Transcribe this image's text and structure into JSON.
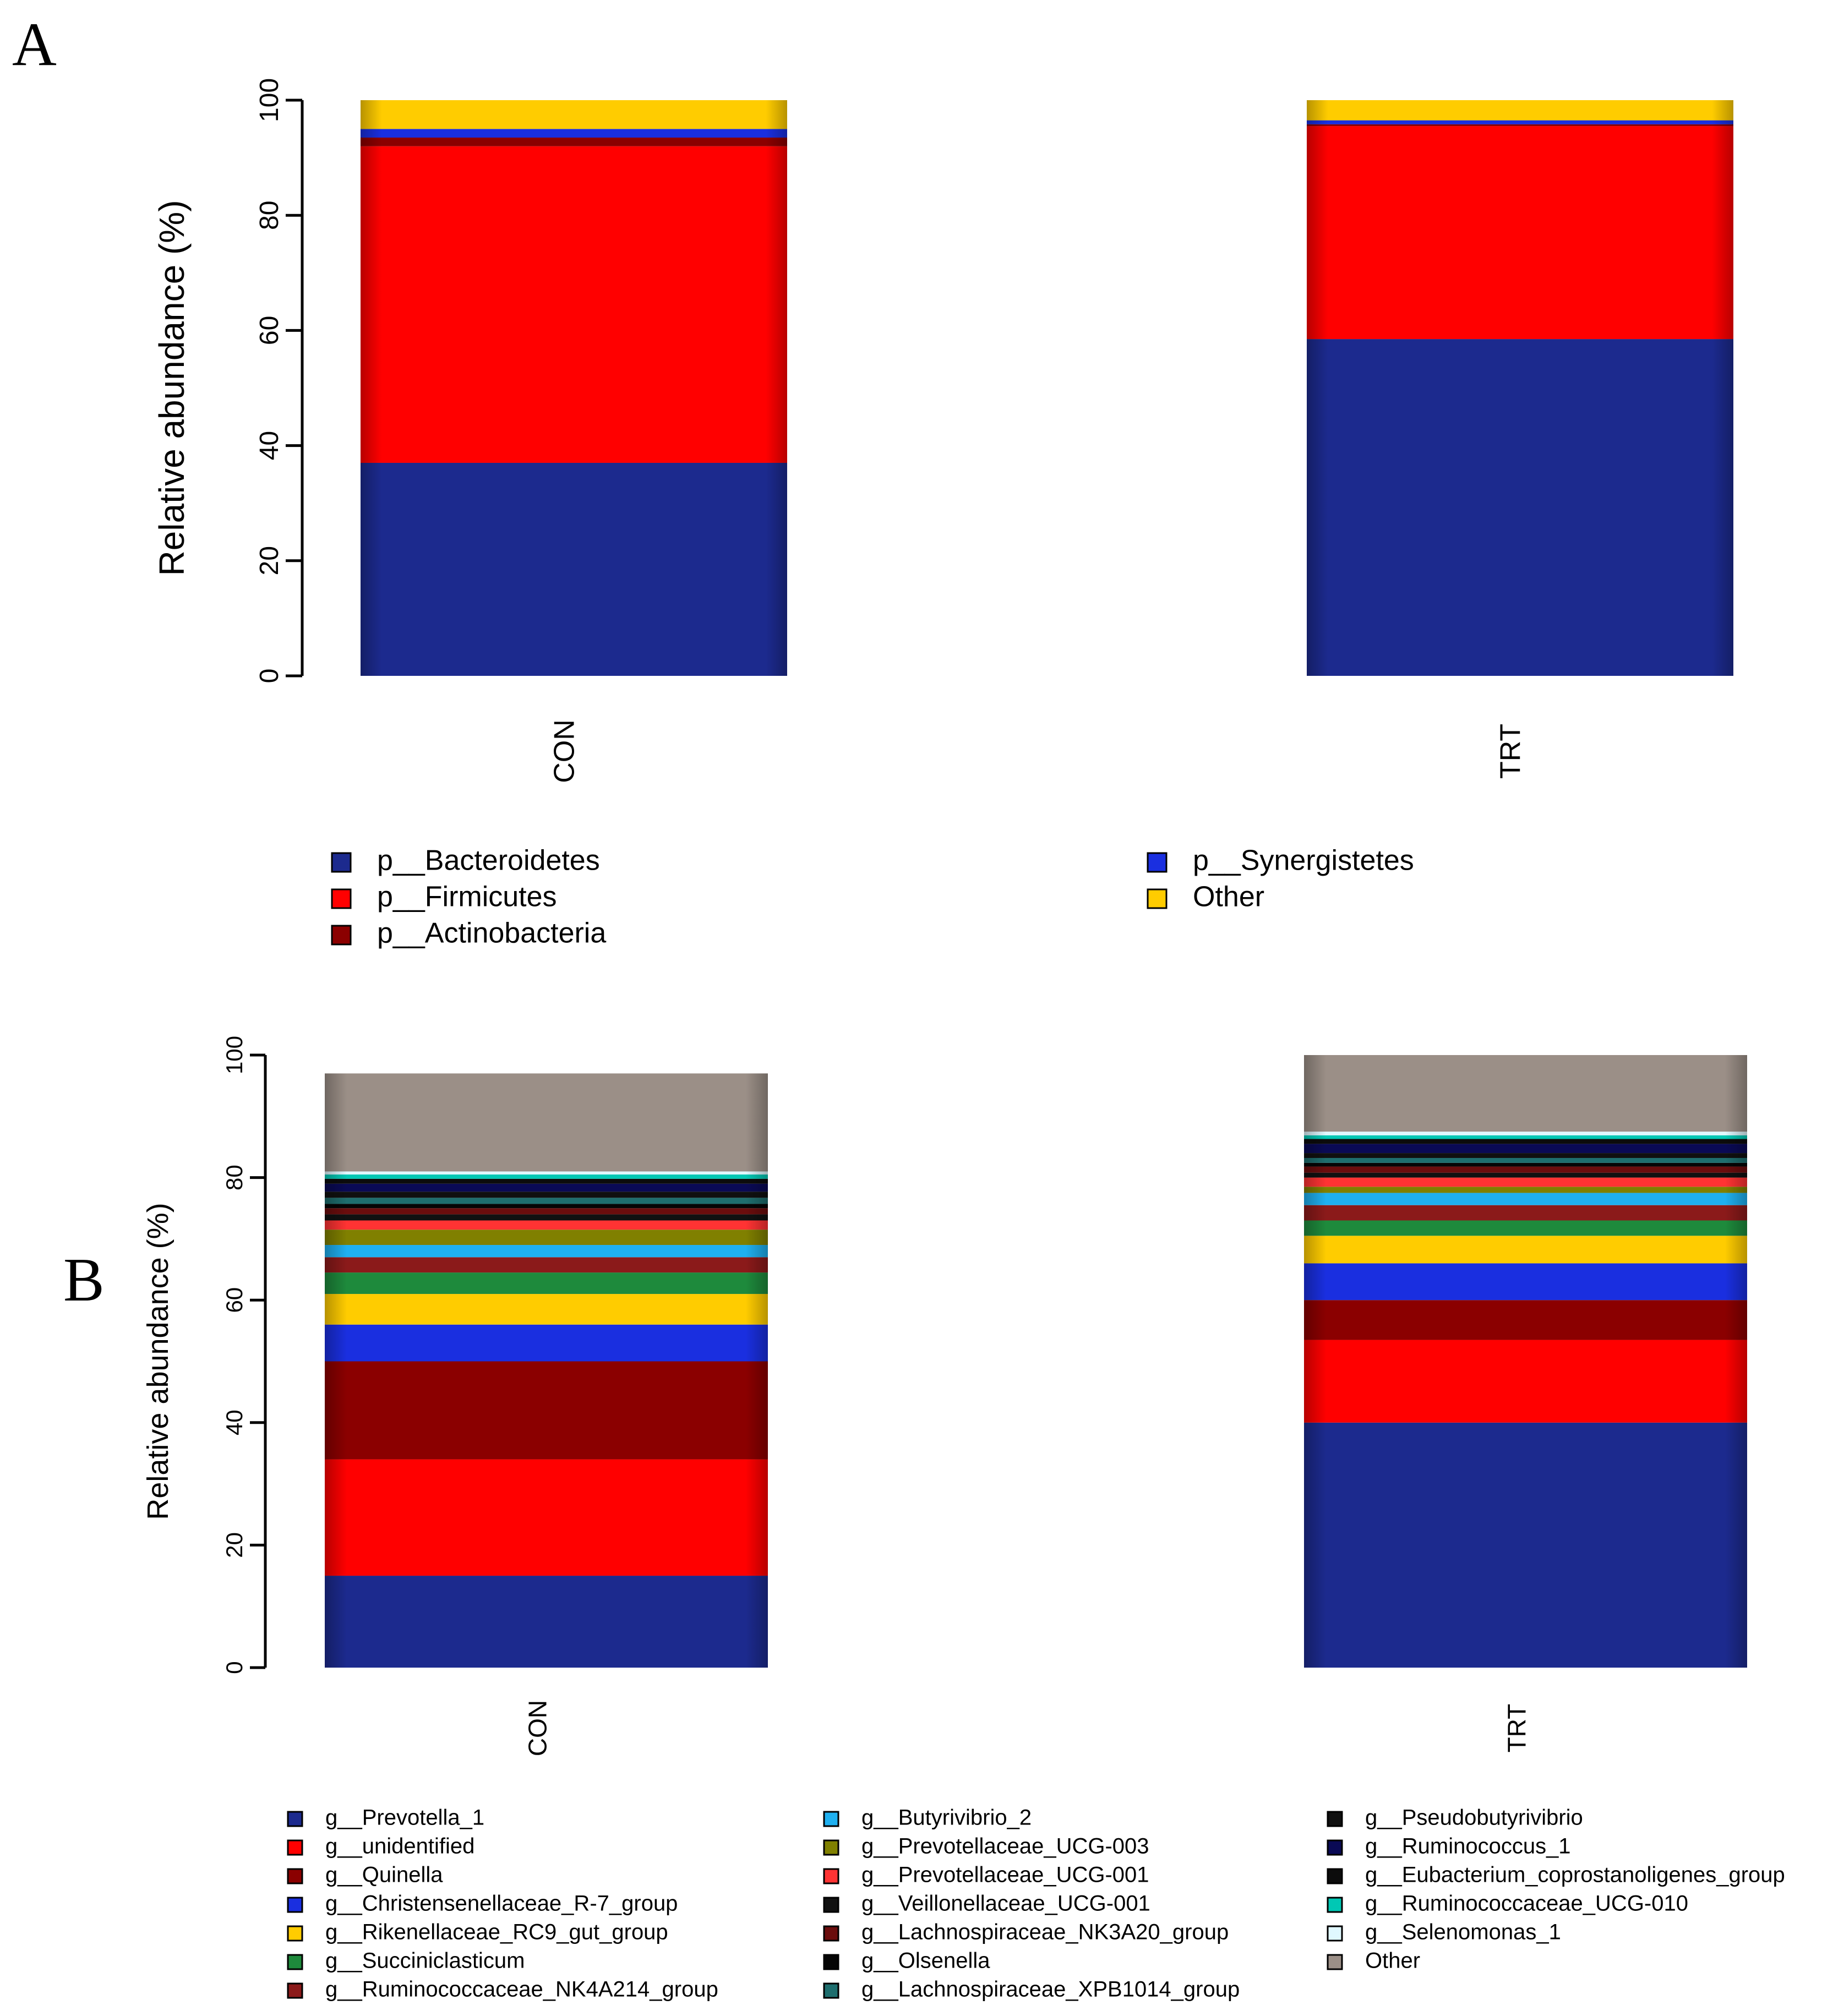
{
  "figure": {
    "panel_a_label": "A",
    "panel_b_label": "B"
  },
  "chart_data": [
    {
      "type": "bar",
      "stacked": true,
      "title": "",
      "xlabel": "",
      "ylabel": "Relative abundance (%)",
      "ylim": [
        0,
        100
      ],
      "yticks": [
        "0",
        "20",
        "40",
        "60",
        "80",
        "100"
      ],
      "categories": [
        "CON",
        "TRT"
      ],
      "series": [
        {
          "name": "p__Bacteroidetes",
          "color": "#1c2a8e",
          "values": [
            37,
            58.5
          ]
        },
        {
          "name": "p__Firmicutes",
          "color": "#ff0000",
          "values": [
            55,
            37
          ]
        },
        {
          "name": "p__Actinobacteria",
          "color": "#8b0000",
          "values": [
            1.5,
            0.3
          ]
        },
        {
          "name": "p__Synergistetes",
          "color": "#1a2fe0",
          "values": [
            1.5,
            0.7
          ]
        },
        {
          "name": "Other",
          "color": "#ffcc00",
          "values": [
            5,
            3.5
          ]
        }
      ],
      "legend": [
        {
          "name": "p__Bacteroidetes",
          "color": "#1c2a8e"
        },
        {
          "name": "p__Firmicutes",
          "color": "#ff0000"
        },
        {
          "name": "p__Actinobacteria",
          "color": "#8b0000"
        },
        {
          "name": "p__Synergistetes",
          "color": "#1a2fe0"
        },
        {
          "name": "Other",
          "color": "#ffcc00"
        }
      ]
    },
    {
      "type": "bar",
      "stacked": true,
      "title": "",
      "xlabel": "",
      "ylabel": "Relative abundance (%)",
      "ylim": [
        0,
        100
      ],
      "yticks": [
        "0",
        "20",
        "40",
        "60",
        "80",
        "100"
      ],
      "categories": [
        "CON",
        "TRT"
      ],
      "series": [
        {
          "name": "g__Prevotella_1",
          "color": "#1c2a8e",
          "values": [
            15,
            40
          ]
        },
        {
          "name": "g__unidentified",
          "color": "#ff0000",
          "values": [
            19,
            13.5
          ]
        },
        {
          "name": "g__Quinella",
          "color": "#8b0000",
          "values": [
            16,
            6.5
          ]
        },
        {
          "name": "g__Christensenellaceae_R-7_group",
          "color": "#1a2fe0",
          "values": [
            6,
            6
          ]
        },
        {
          "name": "g__Rikenellaceae_RC9_gut_group",
          "color": "#ffcc00",
          "values": [
            5,
            4.5
          ]
        },
        {
          "name": "g__Succiniclasticum",
          "color": "#1e8a3c",
          "values": [
            3.5,
            2.5
          ]
        },
        {
          "name": "g__Ruminococcaceae_NK4A214_group",
          "color": "#8b1a1a",
          "values": [
            2.5,
            2.5
          ]
        },
        {
          "name": "g__Butyrivibrio_2",
          "color": "#1fb0f0",
          "values": [
            2,
            2
          ]
        },
        {
          "name": "g__Prevotellaceae_UCG-003",
          "color": "#808000",
          "values": [
            2.5,
            1
          ]
        },
        {
          "name": "g__Prevotellaceae_UCG-001",
          "color": "#ff3333",
          "values": [
            1.5,
            1.5
          ]
        },
        {
          "name": "g__Veillonellaceae_UCG-001",
          "color": "#111111",
          "values": [
            1,
            0.8
          ]
        },
        {
          "name": "g__Lachnospiraceae_NK3A20_group",
          "color": "#6b0d0d",
          "values": [
            1,
            1
          ]
        },
        {
          "name": "g__Olsenella",
          "color": "#050505",
          "values": [
            0.7,
            0.6
          ]
        },
        {
          "name": "g__Lachnospiraceae_XPB1014_group",
          "color": "#1e6e6e",
          "values": [
            1,
            0.8
          ]
        },
        {
          "name": "g__Pseudobutyrivibrio",
          "color": "#101010",
          "values": [
            1,
            0.8
          ]
        },
        {
          "name": "g__Ruminococcus_1",
          "color": "#0a0a55",
          "values": [
            1.3,
            1.5
          ]
        },
        {
          "name": "g__Eubacterium_coprostanoligenes_group",
          "color": "#0c0c0c",
          "values": [
            0.8,
            0.8
          ]
        },
        {
          "name": "g__Ruminococcaceae_UCG-010",
          "color": "#00c8b4",
          "values": [
            0.7,
            0.6
          ]
        },
        {
          "name": "g__Selenomonas_1",
          "color": "#e0f8ff",
          "values": [
            0.5,
            0.6
          ]
        },
        {
          "name": "Other",
          "color": "#9b8f87",
          "values": [
            16,
            12.5
          ]
        }
      ]
    }
  ]
}
